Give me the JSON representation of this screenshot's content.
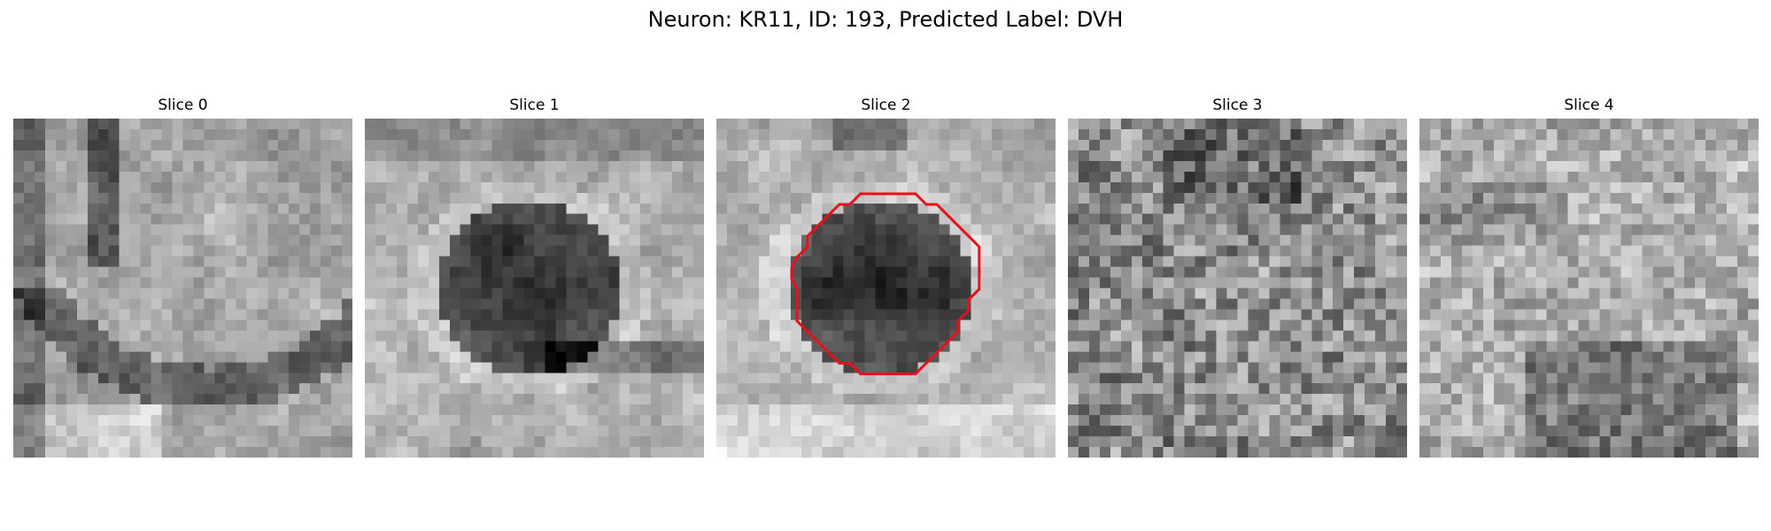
{
  "figure": {
    "title": "Neuron: KR11, ID: 193, Predicted Label: DVH",
    "contour_color": "#e8101a"
  },
  "slices": [
    {
      "title": "Slice 0",
      "pattern": "banded",
      "seed": 11,
      "has_contour": false
    },
    {
      "title": "Slice 1",
      "pattern": "blob",
      "seed": 23,
      "has_contour": false
    },
    {
      "title": "Slice 2",
      "pattern": "blob-contour",
      "seed": 37,
      "has_contour": true
    },
    {
      "title": "Slice 3",
      "pattern": "noise-mid",
      "seed": 41,
      "has_contour": false
    },
    {
      "title": "Slice 4",
      "pattern": "noise-light",
      "seed": 53,
      "has_contour": false
    }
  ]
}
